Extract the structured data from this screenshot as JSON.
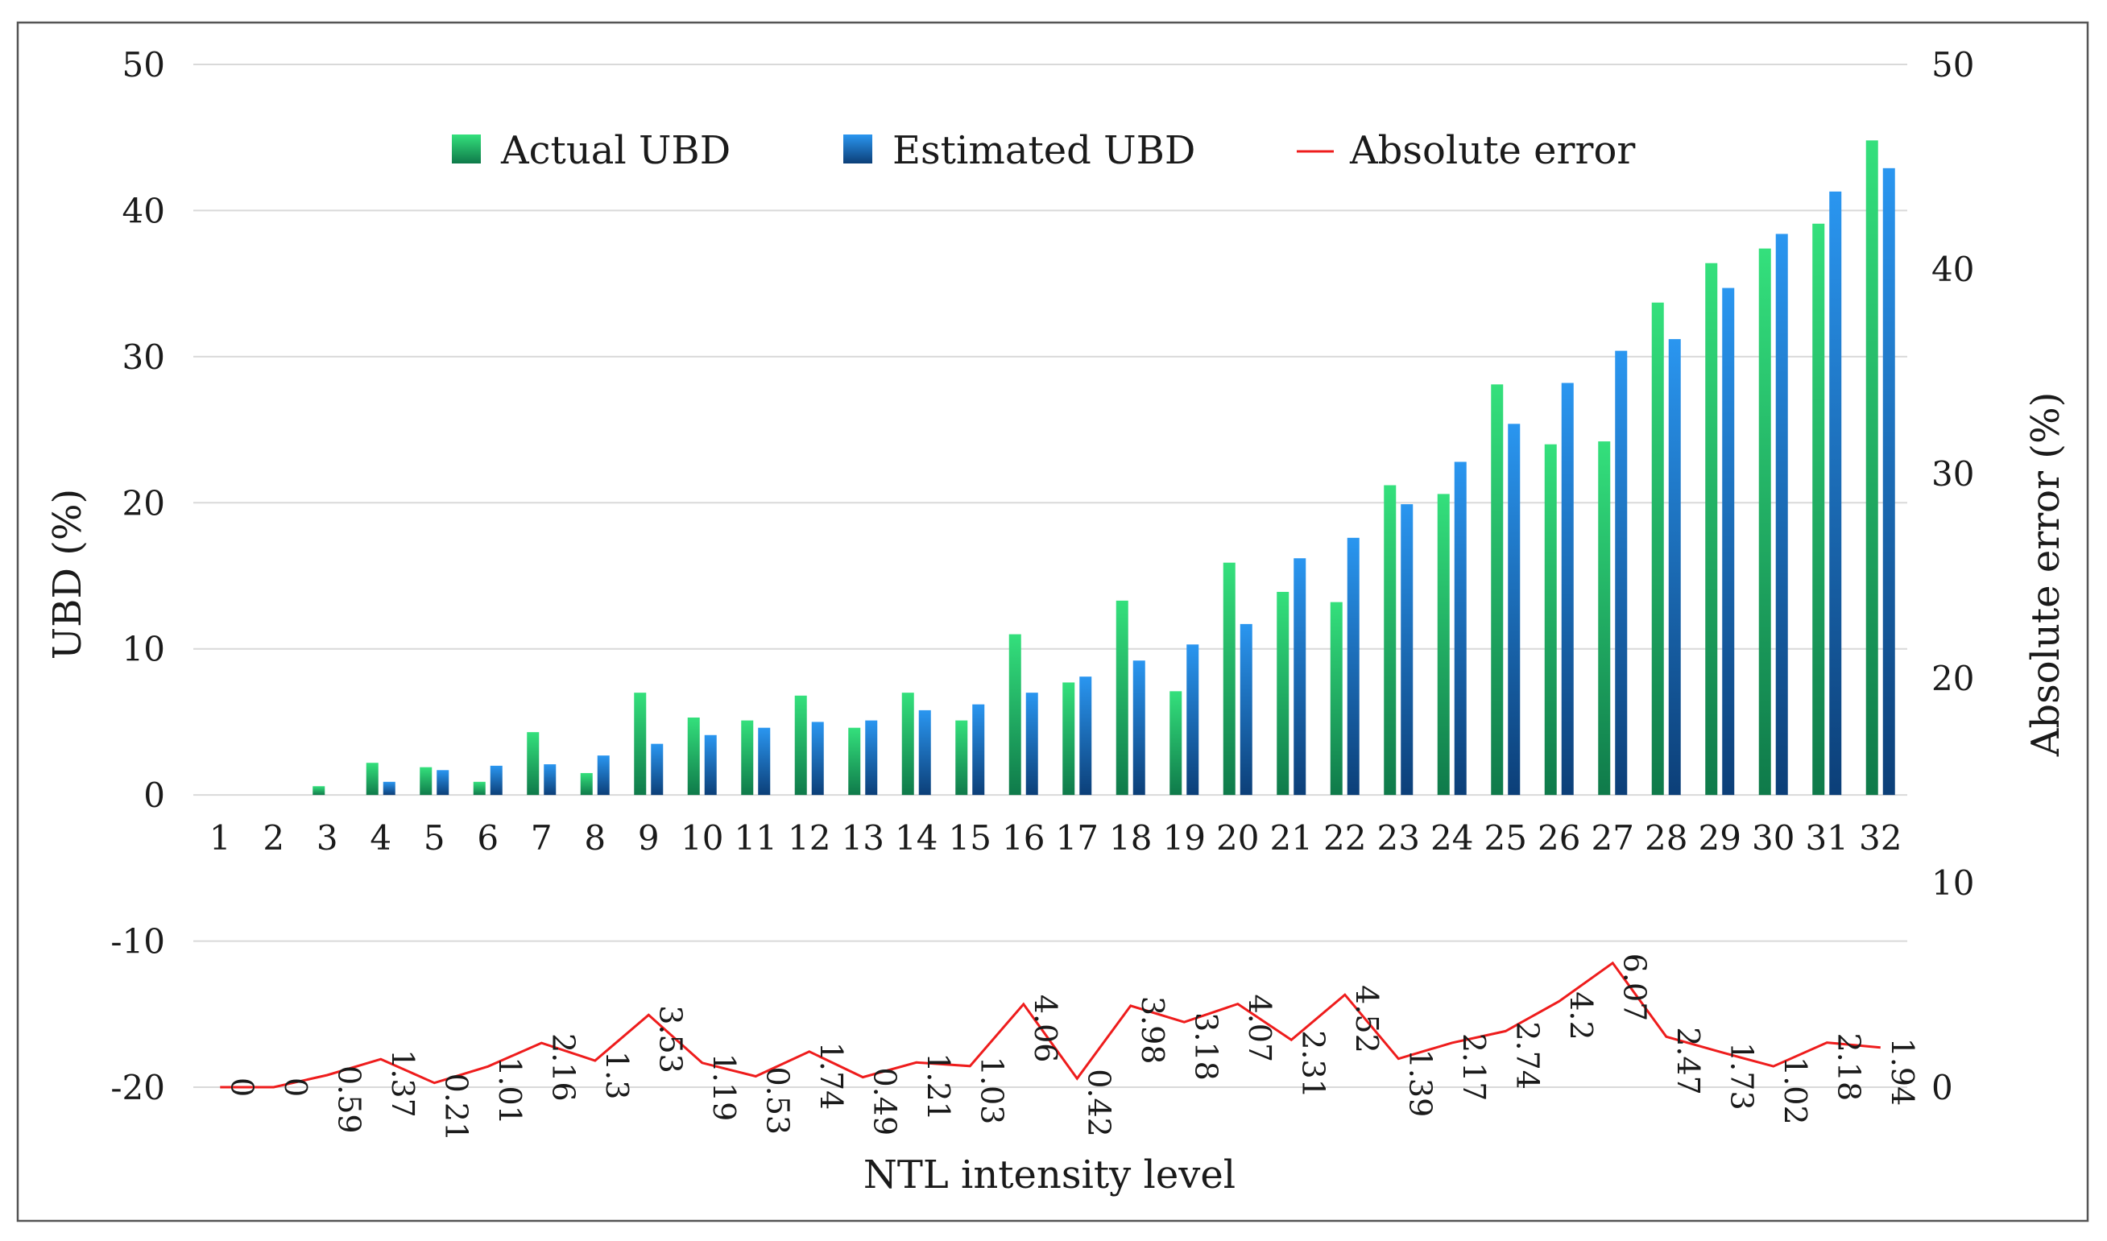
{
  "chart_data": {
    "type": "bar",
    "xlabel": "NTL intensity level",
    "ylabel": "UBD (%)",
    "y2label": "Absolute error (%)",
    "ylim": [
      -20,
      50
    ],
    "y2lim": [
      0,
      50
    ],
    "yticks": [
      50,
      40,
      30,
      20,
      10,
      0,
      -10,
      -20
    ],
    "y2ticks": [
      50,
      40,
      30,
      20,
      10,
      0
    ],
    "categories": [
      "1",
      "2",
      "3",
      "4",
      "5",
      "6",
      "7",
      "8",
      "9",
      "10",
      "11",
      "12",
      "13",
      "14",
      "15",
      "16",
      "17",
      "18",
      "19",
      "20",
      "21",
      "22",
      "23",
      "24",
      "25",
      "26",
      "27",
      "28",
      "29",
      "30",
      "31",
      "32"
    ],
    "legend_position": "top",
    "series": [
      {
        "name": "Actual UBD",
        "type": "bar",
        "axis": "left",
        "color": "#2ecc71",
        "values": [
          0,
          0,
          0.6,
          2.2,
          1.9,
          0.9,
          4.3,
          1.5,
          7.0,
          5.3,
          5.1,
          6.8,
          4.6,
          7.0,
          5.1,
          11.0,
          7.7,
          13.3,
          7.1,
          15.9,
          13.9,
          13.2,
          21.2,
          20.6,
          28.1,
          24.0,
          24.2,
          33.7,
          36.4,
          37.4,
          39.1,
          44.8
        ]
      },
      {
        "name": "Estimated UBD",
        "type": "bar",
        "axis": "left",
        "color": "#1e88e5",
        "values": [
          0,
          0,
          0,
          0.9,
          1.7,
          2.0,
          2.1,
          2.7,
          3.5,
          4.1,
          4.6,
          5.0,
          5.1,
          5.8,
          6.2,
          7.0,
          8.1,
          9.2,
          10.3,
          11.7,
          16.2,
          17.6,
          19.9,
          22.8,
          25.4,
          28.2,
          30.4,
          31.2,
          34.7,
          38.4,
          41.3,
          42.9
        ]
      },
      {
        "name": "Absolute error",
        "type": "line",
        "axis": "right",
        "color": "#ee1c1c",
        "values": [
          0,
          0,
          0.59,
          1.37,
          0.21,
          1.01,
          2.16,
          1.3,
          3.53,
          1.19,
          0.53,
          1.74,
          0.49,
          1.21,
          1.03,
          4.06,
          0.42,
          3.98,
          3.18,
          4.07,
          2.31,
          4.52,
          1.39,
          2.17,
          2.74,
          4.2,
          6.07,
          2.47,
          1.73,
          1.02,
          2.18,
          1.94
        ],
        "labels": [
          "0",
          "0",
          "0.59",
          "1.37",
          "0.21",
          "1.01",
          "2.16",
          "1.3",
          "3.53",
          "1.19",
          "0.53",
          "1.74",
          "0.49",
          "1.21",
          "1.03",
          "4.06",
          "0.42",
          "3.98",
          "3.18",
          "4.07",
          "2.31",
          "4.52",
          "1.39",
          "2.17",
          "2.74",
          "4.2",
          "6.07",
          "2.47",
          "1.73",
          "1.02",
          "2.18",
          "1.94"
        ]
      }
    ]
  }
}
